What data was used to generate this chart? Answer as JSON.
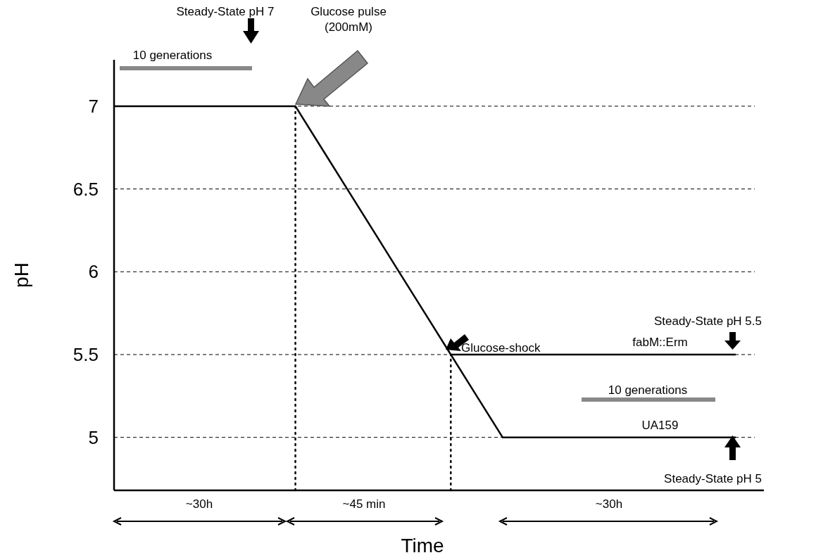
{
  "chart_data": {
    "type": "line",
    "xlabel": "Time",
    "ylabel": "pH",
    "categories": [
      null,
      null,
      null,
      null,
      null,
      null,
      null,
      null,
      null,
      null,
      null,
      null,
      null,
      null,
      null,
      null,
      null,
      null,
      null,
      null,
      null,
      null,
      null,
      null,
      null
    ],
    "series": [
      {
        "name": "UA159",
        "color": "#000000",
        "values": [
          7,
          7,
          7,
          7,
          7,
          7,
          7,
          7,
          6.75,
          6.5,
          6.25,
          6,
          5.75,
          5.5,
          5.25,
          5,
          5,
          5,
          5,
          5,
          5,
          5,
          5,
          5,
          5
        ]
      },
      {
        "name": "fabM::Erm",
        "color": "#000000",
        "values": [
          null,
          null,
          null,
          null,
          null,
          null,
          null,
          null,
          null,
          null,
          null,
          null,
          null,
          5.5,
          5.5,
          5.5,
          5.5,
          5.5,
          5.5,
          5.5,
          5.5,
          5.5,
          5.5,
          5.5,
          5.5
        ]
      }
    ],
    "ylim": [
      4.68,
      7.28
    ],
    "yticks": [
      5,
      5.5,
      6,
      6.5,
      7
    ],
    "grid": "y",
    "line_style": "solid",
    "annotations": [
      "Steady-State pH 7",
      "10 generations",
      "Glucose pulse (200mM)",
      "Glucose-shock",
      "Steady-State pH 5.5",
      "10 generations",
      "Steady-State pH 5",
      "~30h",
      "~45 min",
      "~30h"
    ]
  }
}
